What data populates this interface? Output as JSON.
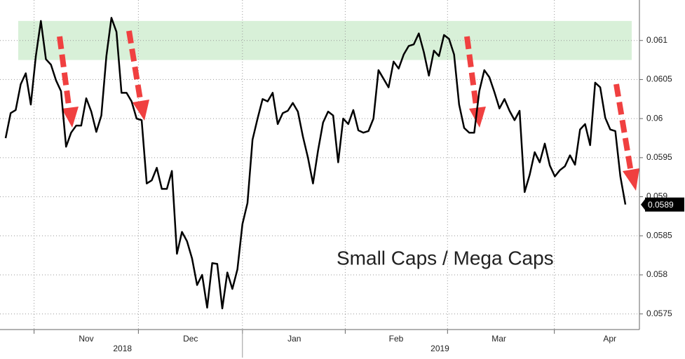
{
  "chart_data": {
    "type": "line",
    "annotation": "Small Caps / Mega Caps",
    "values": [
      0.05975,
      0.06007,
      0.06011,
      0.06044,
      0.06058,
      0.06018,
      0.0608,
      0.06125,
      0.06076,
      0.06069,
      0.06049,
      0.06035,
      0.05964,
      0.05982,
      0.05991,
      0.05991,
      0.06026,
      0.06009,
      0.05983,
      0.06004,
      0.0608,
      0.06129,
      0.06111,
      0.06033,
      0.06033,
      0.06022,
      0.06,
      0.05998,
      0.05917,
      0.05921,
      0.05937,
      0.0591,
      0.0591,
      0.05933,
      0.05827,
      0.05855,
      0.05843,
      0.05821,
      0.05787,
      0.058,
      0.05758,
      0.05815,
      0.05814,
      0.05757,
      0.05803,
      0.05782,
      0.05807,
      0.05865,
      0.05892,
      0.05973,
      0.06,
      0.06025,
      0.06022,
      0.06033,
      0.05993,
      0.06007,
      0.0601,
      0.0602,
      0.06009,
      0.05977,
      0.0595,
      0.05917,
      0.05959,
      0.05995,
      0.06009,
      0.06004,
      0.05944,
      0.06,
      0.05993,
      0.06011,
      0.05985,
      0.05982,
      0.05984,
      0.06,
      0.06062,
      0.06051,
      0.0604,
      0.06073,
      0.06064,
      0.06082,
      0.06093,
      0.06095,
      0.06109,
      0.06085,
      0.06055,
      0.06087,
      0.0608,
      0.06107,
      0.06102,
      0.06082,
      0.06018,
      0.05988,
      0.05982,
      0.05982,
      0.06035,
      0.06062,
      0.06053,
      0.06034,
      0.06013,
      0.06025,
      0.0601,
      0.05998,
      0.0601,
      0.05906,
      0.05928,
      0.05957,
      0.05944,
      0.05968,
      0.0594,
      0.05926,
      0.05934,
      0.05939,
      0.05953,
      0.05941,
      0.05986,
      0.05993,
      0.05966,
      0.06046,
      0.0604,
      0.06001,
      0.05986,
      0.05984,
      0.05926,
      0.0589
    ],
    "color": "#000000",
    "highlight_band": [
      0.06075,
      0.06125
    ],
    "band_color": "#d8f0d8",
    "xlim": [
      0,
      123
    ],
    "xticks": [
      {
        "value": 16,
        "label": "Nov"
      },
      {
        "value": 36.7,
        "label": "Dec"
      },
      {
        "value": 57.3,
        "label": "Jan"
      },
      {
        "value": 77.5,
        "label": "Feb"
      },
      {
        "value": 97.9,
        "label": "Mar"
      },
      {
        "value": 119.9,
        "label": "Apr"
      }
    ],
    "xgroups": [
      {
        "value": 23.2,
        "label": "2018"
      },
      {
        "value": 86.2,
        "label": "2019"
      }
    ],
    "ylim": [
      0.0573,
      0.0615
    ],
    "yticks": [
      0.0575,
      0.058,
      0.0585,
      0.059,
      0.0595,
      0.06,
      0.0605,
      0.061
    ],
    "grid": true
  }
}
